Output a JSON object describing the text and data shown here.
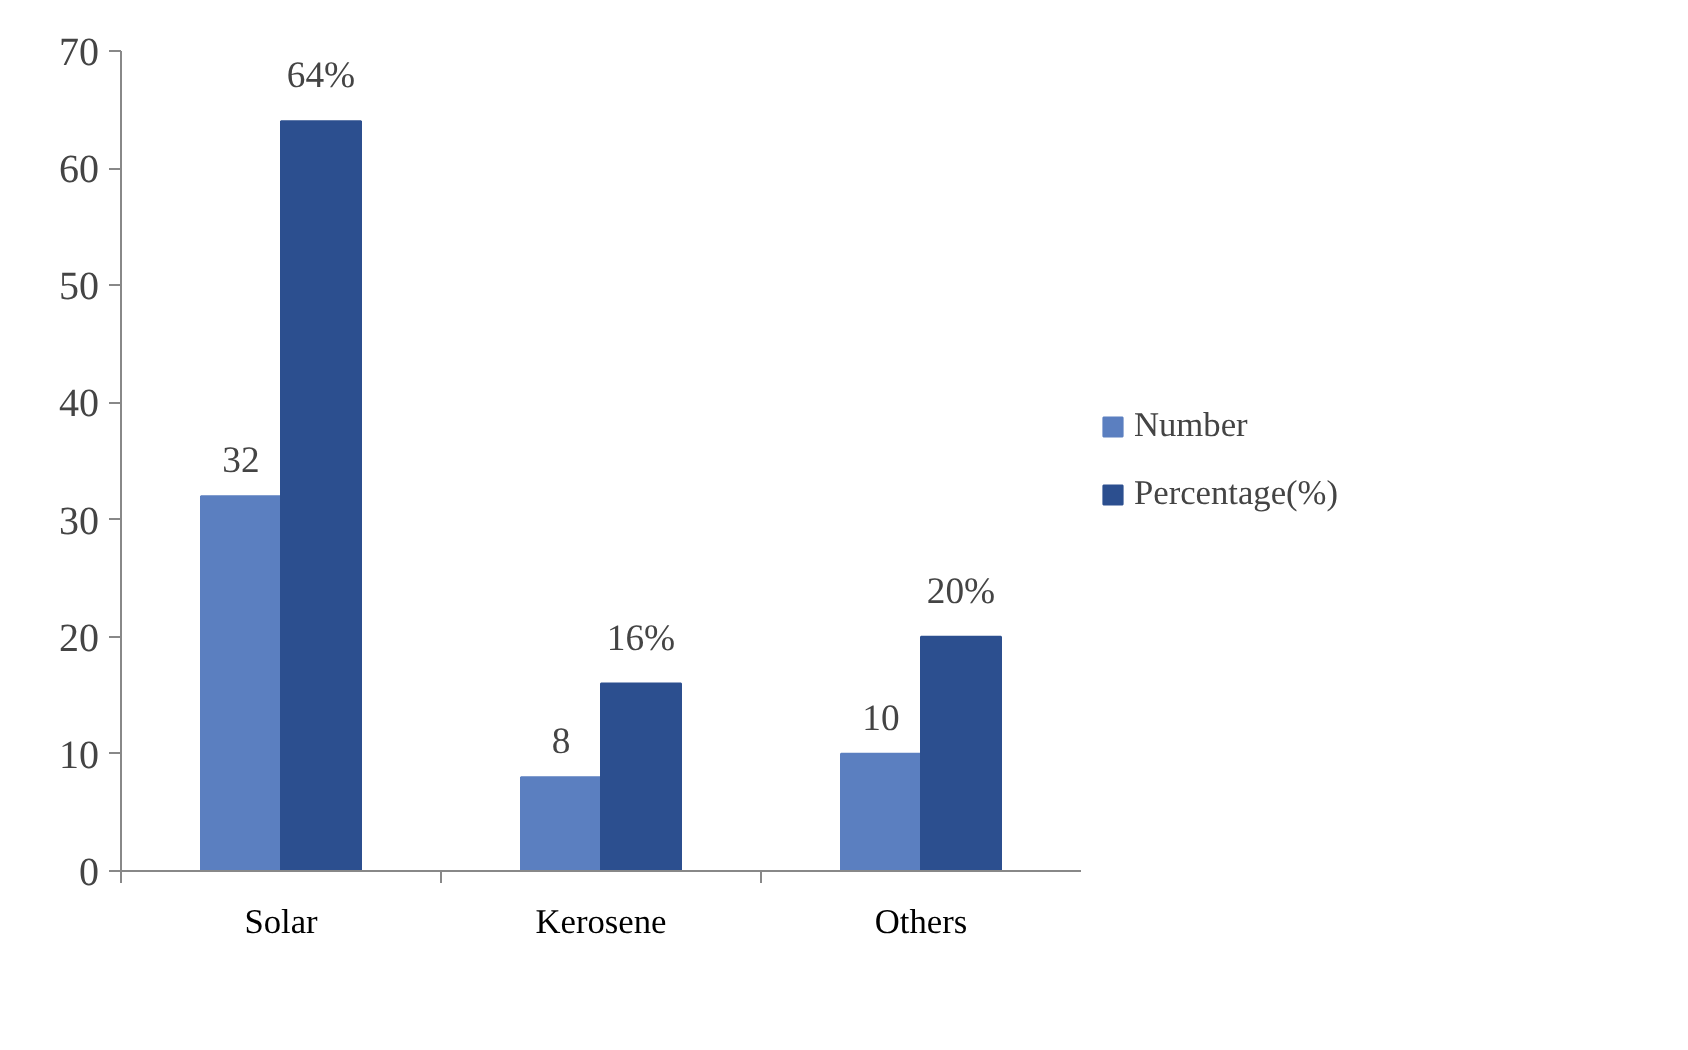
{
  "chart_data": {
    "type": "bar",
    "categories": [
      "Solar",
      "Kerosene",
      "Others"
    ],
    "series": [
      {
        "name": "Number",
        "color": "#5b7fc0",
        "values": [
          32,
          8,
          10
        ],
        "value_labels": [
          "32",
          "8",
          "10"
        ]
      },
      {
        "name": "Percentage(%)",
        "color": "#2c4f8f",
        "values": [
          64,
          16,
          20
        ],
        "value_labels": [
          "64%",
          "16%",
          "20%"
        ]
      }
    ],
    "ylim": [
      0,
      70
    ],
    "yticks": [
      0,
      10,
      20,
      30,
      40,
      50,
      60,
      70
    ],
    "grid": false,
    "legend": "right"
  }
}
